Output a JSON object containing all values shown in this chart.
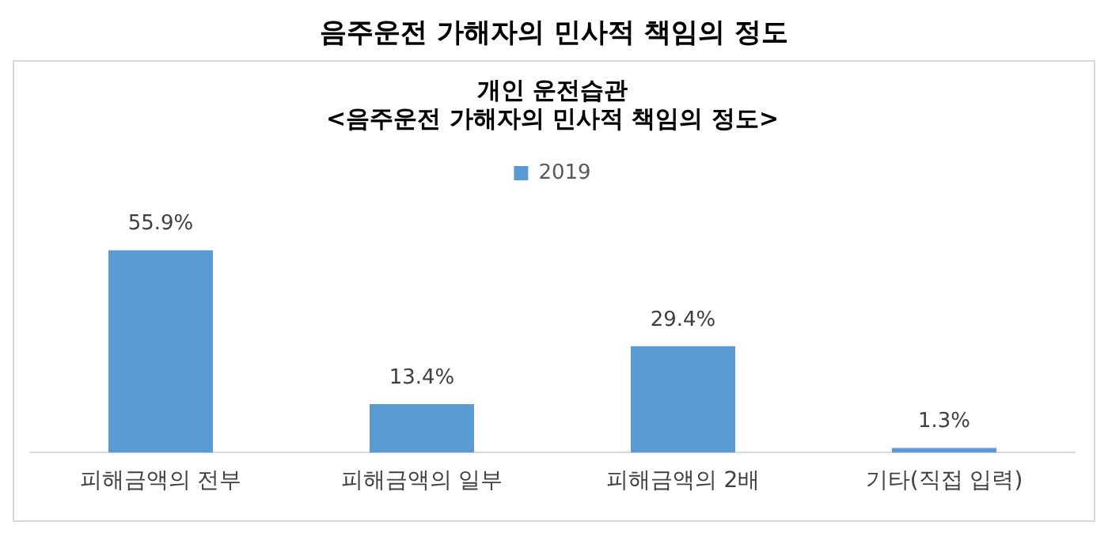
{
  "chart_data": {
    "type": "bar",
    "title": "음주운전 가해자의 민사적 책임의 정도",
    "subtitle": "개인 운전습관\n<음주운전 가해자의 민사적 책임의 정도>",
    "categories": [
      "피해금액의 전부",
      "피해금액의 일부",
      "피해금액의 2배",
      "기타(직접 입력)"
    ],
    "series": [
      {
        "name": "2019",
        "color": "#5b9bd5",
        "values": [
          55.9,
          13.4,
          29.4,
          1.3
        ],
        "value_labels": [
          "55.9%",
          "13.4%",
          "29.4%",
          "1.3%"
        ]
      }
    ],
    "legend": "top"
  }
}
